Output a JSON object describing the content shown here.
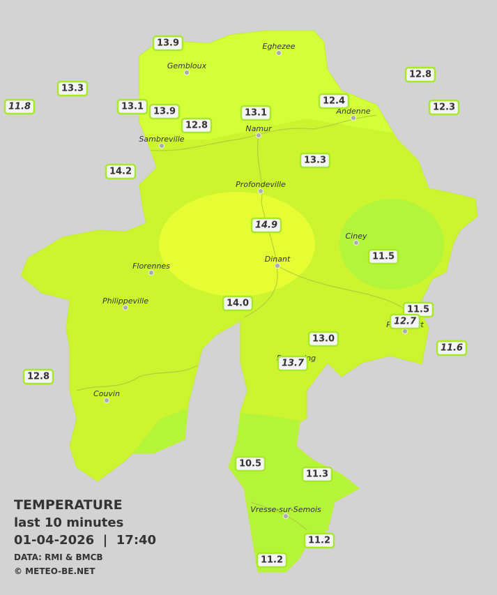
{
  "legend": {
    "title": "TEMPERATURE",
    "subtitle": "last 10 minutes",
    "timestamp": "01-04-2026  |  17:40",
    "source": "DATA: RMI & BMCB",
    "copyright": "© METEO-BE.NET"
  },
  "cities": [
    "Eghezee",
    "Gembloux",
    "Andenne",
    "Namur",
    "Sambreville",
    "Profondeville",
    "Ciney",
    "Florennes",
    "Dinant",
    "Philippeville",
    "Rochefort",
    "Beauraing",
    "Couvin",
    "Vresse-sur-Semois"
  ],
  "stations": [
    "13.9",
    "13.3",
    "11.8",
    "13.1",
    "13.9",
    "12.8",
    "13.1",
    "12.4",
    "12.8",
    "12.3",
    "13.3",
    "14.2",
    "14.9",
    "11.5",
    "14.0",
    "11.5",
    "12.7",
    "13.0",
    "11.6",
    "13.7",
    "12.8",
    "10.5",
    "11.3",
    "11.2",
    "11.2"
  ]
}
